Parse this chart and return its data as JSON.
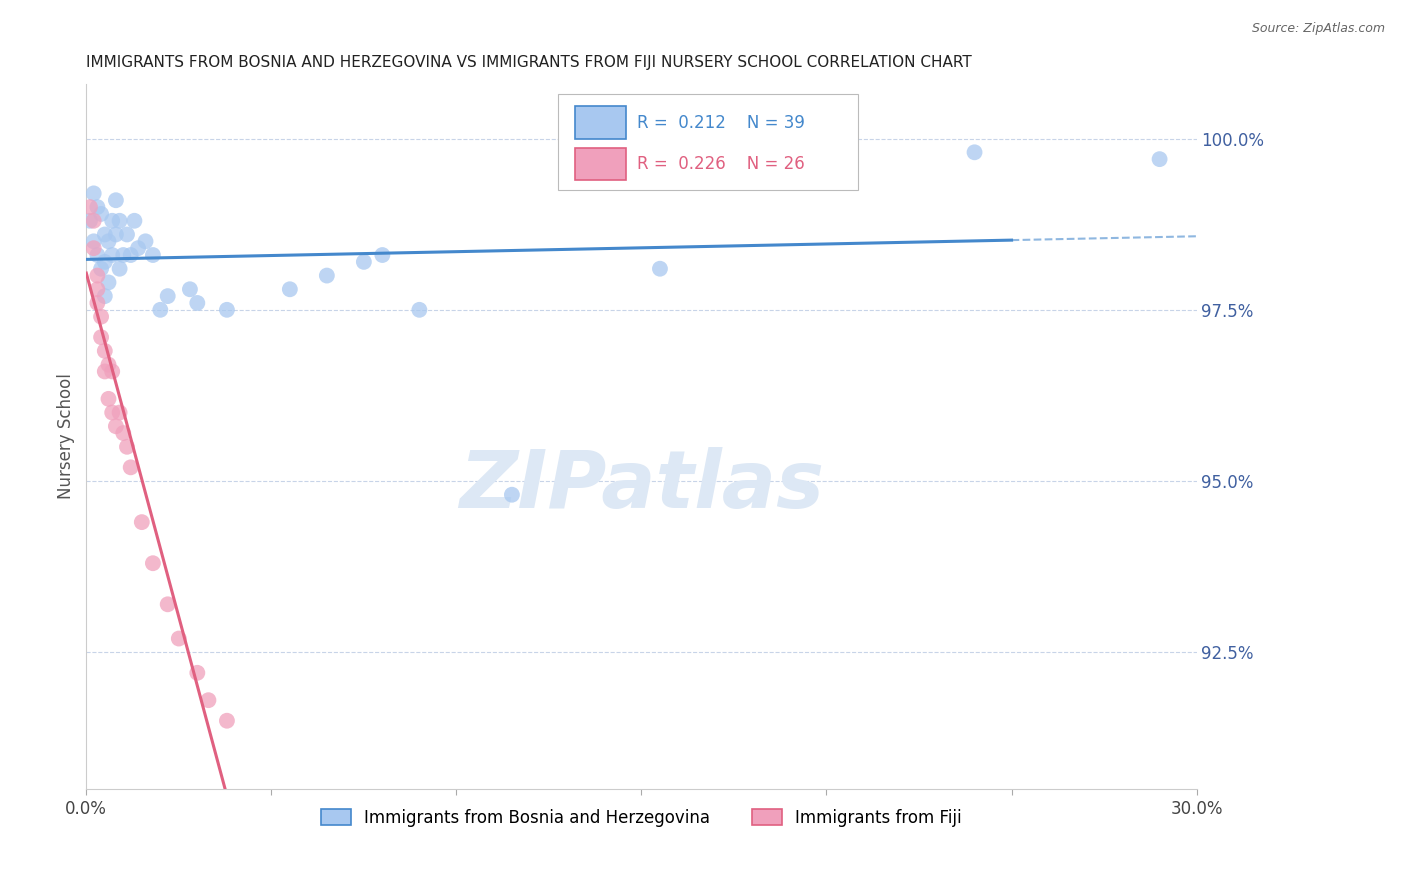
{
  "title": "IMMIGRANTS FROM BOSNIA AND HERZEGOVINA VS IMMIGRANTS FROM FIJI NURSERY SCHOOL CORRELATION CHART",
  "source": "Source: ZipAtlas.com",
  "ylabel": "Nursery School",
  "xlim": [
    0.0,
    0.3
  ],
  "ylim": [
    0.905,
    1.008
  ],
  "yticks": [
    0.925,
    0.95,
    0.975,
    1.0
  ],
  "ytick_labels": [
    "92.5%",
    "95.0%",
    "97.5%",
    "100.0%"
  ],
  "xticks": [
    0.0,
    0.05,
    0.1,
    0.15,
    0.2,
    0.25,
    0.3
  ],
  "xtick_labels": [
    "0.0%",
    "",
    "",
    "",
    "",
    "",
    "30.0%"
  ],
  "series": [
    {
      "label": "Immigrants from Bosnia and Herzegovina",
      "R": 0.212,
      "N": 39,
      "color": "#a8c8f0",
      "trend_color": "#4488cc",
      "trend_dashed_start": 0.25,
      "x": [
        0.001,
        0.002,
        0.002,
        0.003,
        0.003,
        0.004,
        0.004,
        0.005,
        0.005,
        0.005,
        0.006,
        0.006,
        0.007,
        0.007,
        0.008,
        0.008,
        0.009,
        0.009,
        0.01,
        0.011,
        0.012,
        0.013,
        0.014,
        0.016,
        0.018,
        0.02,
        0.022,
        0.028,
        0.03,
        0.038,
        0.055,
        0.065,
        0.075,
        0.08,
        0.09,
        0.115,
        0.155,
        0.24,
        0.29
      ],
      "y": [
        0.988,
        0.992,
        0.985,
        0.99,
        0.983,
        0.989,
        0.981,
        0.986,
        0.982,
        0.977,
        0.985,
        0.979,
        0.988,
        0.983,
        0.991,
        0.986,
        0.988,
        0.981,
        0.983,
        0.986,
        0.983,
        0.988,
        0.984,
        0.985,
        0.983,
        0.975,
        0.977,
        0.978,
        0.976,
        0.975,
        0.978,
        0.98,
        0.982,
        0.983,
        0.975,
        0.948,
        0.981,
        0.998,
        0.997
      ]
    },
    {
      "label": "Immigrants from Fiji",
      "R": 0.226,
      "N": 26,
      "color": "#f0a0bc",
      "trend_color": "#e06080",
      "trend_dashed_start": null,
      "x": [
        0.001,
        0.002,
        0.002,
        0.003,
        0.003,
        0.003,
        0.004,
        0.004,
        0.005,
        0.005,
        0.006,
        0.006,
        0.007,
        0.007,
        0.008,
        0.009,
        0.01,
        0.011,
        0.012,
        0.015,
        0.018,
        0.022,
        0.025,
        0.03,
        0.033,
        0.038
      ],
      "y": [
        0.99,
        0.988,
        0.984,
        0.98,
        0.978,
        0.976,
        0.974,
        0.971,
        0.969,
        0.966,
        0.967,
        0.962,
        0.966,
        0.96,
        0.958,
        0.96,
        0.957,
        0.955,
        0.952,
        0.944,
        0.938,
        0.932,
        0.927,
        0.922,
        0.918,
        0.915
      ]
    }
  ],
  "legend_R_colors": [
    "#4488cc",
    "#e06080"
  ],
  "background_color": "#ffffff",
  "grid_color": "#c8d4e8",
  "watermark_text": "ZIPatlas",
  "watermark_color": "#dde8f5",
  "title_fontsize": 11,
  "axis_color": "#4060a0",
  "ylabel_color": "#555555"
}
